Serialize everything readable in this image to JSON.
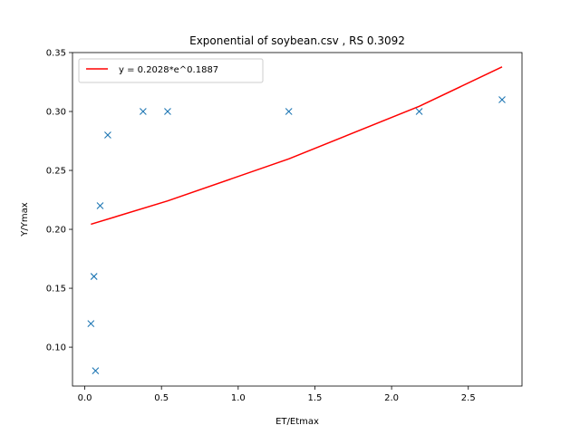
{
  "chart_data": {
    "type": "scatter",
    "title": "Exponential of soybean.csv , RS 0.3092",
    "xlabel": "ET/Etmax",
    "ylabel": "Y/Ymax",
    "xlim": [
      -0.08,
      2.85
    ],
    "ylim": [
      0.067,
      0.35
    ],
    "xticks": [
      0.0,
      0.5,
      1.0,
      1.5,
      2.0,
      2.5
    ],
    "xtick_labels": [
      "0.0",
      "0.5",
      "1.0",
      "1.5",
      "2.0",
      "2.5"
    ],
    "yticks": [
      0.1,
      0.15,
      0.2,
      0.25,
      0.3,
      0.35
    ],
    "ytick_labels": [
      "0.10",
      "0.15",
      "0.20",
      "0.25",
      "0.30",
      "0.35"
    ],
    "grid": false,
    "legend_position": "top-left",
    "series": [
      {
        "kind": "scatter",
        "marker": "x",
        "color": "#1f77b4",
        "points": [
          {
            "x": 0.04,
            "y": 0.12
          },
          {
            "x": 0.06,
            "y": 0.16
          },
          {
            "x": 0.07,
            "y": 0.08
          },
          {
            "x": 0.1,
            "y": 0.22
          },
          {
            "x": 0.15,
            "y": 0.28
          },
          {
            "x": 0.38,
            "y": 0.3
          },
          {
            "x": 0.54,
            "y": 0.3
          },
          {
            "x": 1.33,
            "y": 0.3
          },
          {
            "x": 2.18,
            "y": 0.3
          },
          {
            "x": 2.72,
            "y": 0.31
          }
        ]
      },
      {
        "kind": "line",
        "name": "y = 0.2028*e^0.1887",
        "color": "#ff0000",
        "points": [
          {
            "x": 0.04,
            "y": 0.2043
          },
          {
            "x": 0.54,
            "y": 0.2241
          },
          {
            "x": 1.33,
            "y": 0.2598
          },
          {
            "x": 2.18,
            "y": 0.3044
          },
          {
            "x": 2.72,
            "y": 0.3378
          }
        ]
      }
    ]
  }
}
